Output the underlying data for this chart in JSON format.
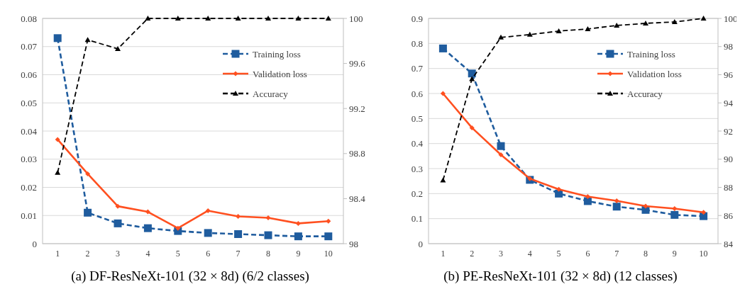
{
  "chart_data": [
    {
      "type": "line",
      "title": "(a) DF-ResNeXt-101  (32 × 8d)  (6/2 classes)",
      "categories": [
        "1",
        "2",
        "3",
        "4",
        "5",
        "6",
        "7",
        "8",
        "9",
        "10"
      ],
      "ylim": [
        0,
        0.08
      ],
      "yticks": [
        0,
        0.01,
        0.02,
        0.03,
        0.04,
        0.05,
        0.06,
        0.07,
        0.08
      ],
      "y2lim": [
        98,
        100
      ],
      "y2ticks": [
        98,
        98.4,
        98.8,
        99.2,
        99.6,
        100
      ],
      "grid": "y",
      "legend": "top right",
      "series": [
        {
          "name": "Training loss",
          "color": "#1f5c9e",
          "marker": "square",
          "line_style": "dashed",
          "values": [
            0.073,
            0.011,
            0.0072,
            0.0055,
            0.0045,
            0.0038,
            0.0034,
            0.003,
            0.0026,
            0.0026
          ]
        },
        {
          "name": "Validation loss",
          "color": "#ff5020",
          "marker": "diamond",
          "line_style": "solid",
          "values": [
            0.037,
            0.0248,
            0.0133,
            0.0113,
            0.0055,
            0.0117,
            0.0097,
            0.0092,
            0.0072,
            0.008
          ]
        },
        {
          "name": "Accuracy",
          "color": "#000000",
          "marker": "triangle",
          "line_style": "dashed",
          "axis": "y2",
          "values": [
            98.63,
            99.81,
            99.73,
            100,
            100,
            100,
            100,
            100,
            100,
            100
          ]
        }
      ]
    },
    {
      "type": "line",
      "title": "(b) PE-ResNeXt-101  (32 × 8d)  (12 classes)",
      "categories": [
        "1",
        "2",
        "3",
        "4",
        "5",
        "6",
        "7",
        "8",
        "9",
        "10"
      ],
      "ylim": [
        0,
        0.9
      ],
      "yticks": [
        0,
        0.1,
        0.2,
        0.3,
        0.4,
        0.5,
        0.6,
        0.7,
        0.8,
        0.9
      ],
      "y2lim": [
        84,
        100
      ],
      "y2ticks": [
        84,
        86,
        88,
        90,
        92,
        94,
        96,
        98,
        100
      ],
      "grid": "y",
      "legend": "top right",
      "series": [
        {
          "name": "Training loss",
          "color": "#1f5c9e",
          "marker": "square",
          "line_style": "dashed",
          "values": [
            0.78,
            0.68,
            0.39,
            0.255,
            0.2,
            0.17,
            0.148,
            0.135,
            0.115,
            0.11
          ]
        },
        {
          "name": "Validation loss",
          "color": "#ff5020",
          "marker": "diamond",
          "line_style": "solid",
          "values": [
            0.6,
            0.463,
            0.355,
            0.26,
            0.217,
            0.188,
            0.171,
            0.15,
            0.14,
            0.125
          ]
        },
        {
          "name": "Accuracy",
          "color": "#000000",
          "marker": "triangle",
          "line_style": "dashed",
          "axis": "y2",
          "values": [
            88.5,
            95.7,
            98.65,
            98.85,
            99.1,
            99.25,
            99.5,
            99.65,
            99.75,
            100
          ]
        }
      ]
    }
  ]
}
